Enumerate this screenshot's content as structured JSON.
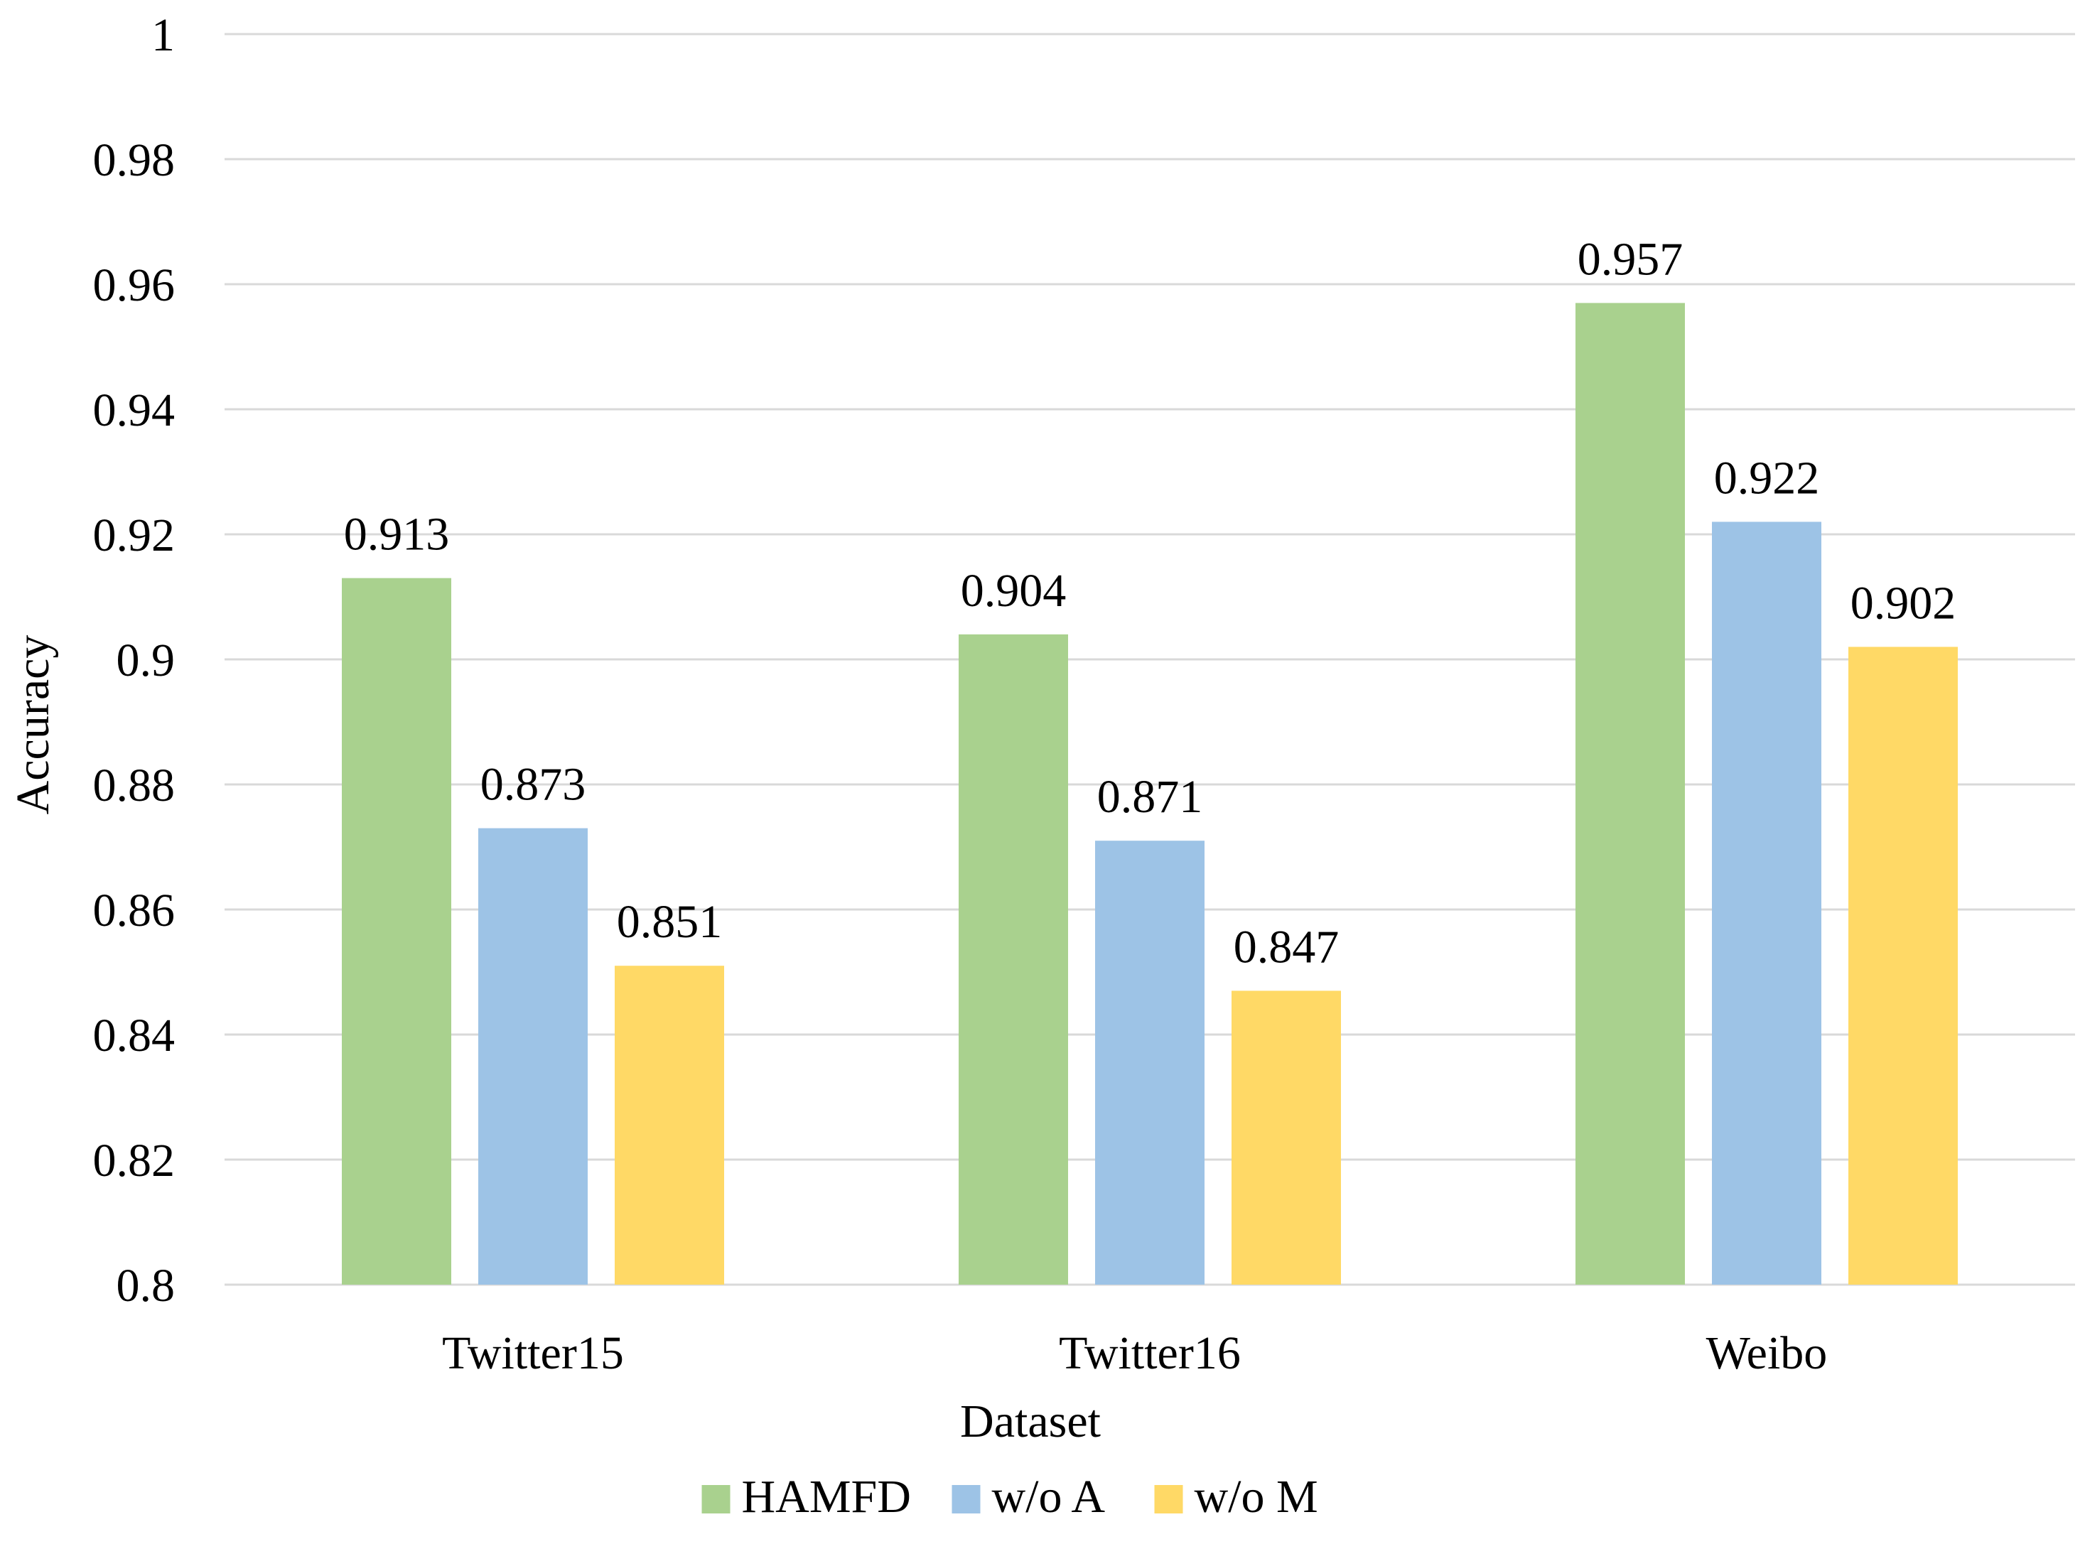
{
  "chart_data": {
    "type": "bar",
    "title": "",
    "xlabel": "Dataset",
    "ylabel": "Accuracy",
    "ylim": [
      0.8,
      1.0
    ],
    "ytick_step": 0.02,
    "yticks": [
      "0.8",
      "0.82",
      "0.84",
      "0.86",
      "0.88",
      "0.9",
      "0.92",
      "0.94",
      "0.96",
      "0.98",
      "1"
    ],
    "grid": true,
    "legend_position": "bottom",
    "categories": [
      "Twitter15",
      "Twitter16",
      "Weibo"
    ],
    "series": [
      {
        "name": "HAMFD",
        "color": "#a9d18e",
        "values": [
          0.913,
          0.904,
          0.957
        ],
        "labels": [
          "0.913",
          "0.904",
          "0.957"
        ]
      },
      {
        "name": "w/o A",
        "color": "#9dc3e6",
        "values": [
          0.873,
          0.871,
          0.922
        ],
        "labels": [
          "0.873",
          "0.871",
          "0.922"
        ]
      },
      {
        "name": "w/o M",
        "color": "#ffd966",
        "values": [
          0.851,
          0.847,
          0.902
        ],
        "labels": [
          "0.851",
          "0.847",
          "0.902"
        ]
      }
    ]
  }
}
